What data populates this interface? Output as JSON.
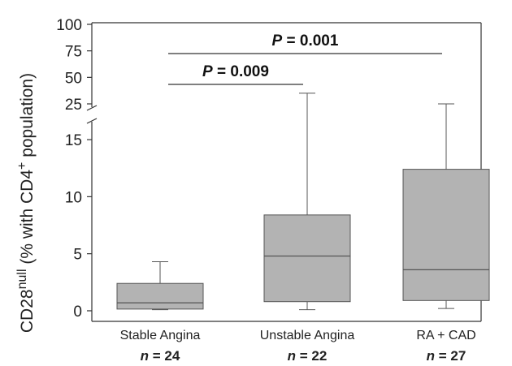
{
  "chart_data": {
    "type": "box",
    "ylabel_main": "CD28",
    "ylabel_sup1": "null",
    "ylabel_rest1": " (% with CD4",
    "ylabel_sup2": "+",
    "ylabel_rest2": " population)",
    "y_axis_break": true,
    "y_lower": {
      "ylim": [
        -0.5,
        16
      ],
      "ticks": [
        "0",
        "5",
        "10",
        "15"
      ],
      "tick_values": [
        0,
        5,
        10,
        15
      ]
    },
    "y_upper": {
      "ylim": [
        25,
        100
      ],
      "ticks": [
        "25",
        "50",
        "75",
        "100"
      ],
      "tick_values": [
        25,
        50,
        75,
        100
      ]
    },
    "categories": [
      "Stable Angina",
      "Unstable Angina",
      "RA + CAD"
    ],
    "n_labels": [
      {
        "prefix": "n",
        "text": " = 24"
      },
      {
        "prefix": "n",
        "text": " = 22"
      },
      {
        "prefix": "n",
        "text": " = 27"
      }
    ],
    "boxes": [
      {
        "min": 0.1,
        "q1": 0.15,
        "median": 0.7,
        "q3": 2.4,
        "max": 4.3
      },
      {
        "min": 0.1,
        "q1": 0.8,
        "median": 4.8,
        "q3": 8.4,
        "max": 35
      },
      {
        "min": 0.2,
        "q1": 0.9,
        "median": 3.6,
        "q3": 12.4,
        "max": 23
      }
    ],
    "comparisons": [
      {
        "from": 0,
        "to": 1,
        "p_prefix": "P",
        "p_text": " = 0.009"
      },
      {
        "from": 0,
        "to": 2,
        "p_prefix": "P",
        "p_text": " = 0.001"
      }
    ],
    "colors": {
      "box_fill": "#b3b3b3",
      "box_stroke": "#555555"
    }
  }
}
